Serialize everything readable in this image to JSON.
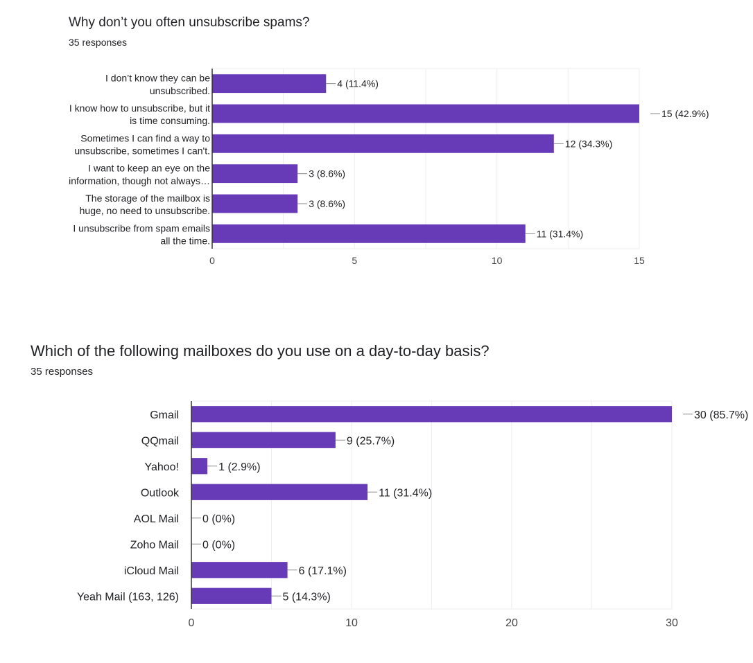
{
  "chart_data": [
    {
      "type": "bar",
      "orientation": "horizontal",
      "title": "Why don’t you often unsubscribe spams?",
      "subtitle": "35 responses",
      "categories": [
        [
          "I don’t know they can be",
          "unsubscribed."
        ],
        [
          "I know how to unsubscribe, but it",
          "is time consuming."
        ],
        [
          "Sometimes I can find a way to",
          "unsubscribe, sometimes I can't."
        ],
        [
          "I want to keep an eye on the",
          "information, though not always…"
        ],
        [
          "The storage of the mailbox is",
          "huge, no need to unsubscribe."
        ],
        [
          "I unsubscribe from spam emails",
          "all the time."
        ]
      ],
      "values": [
        4,
        15,
        12,
        3,
        3,
        11
      ],
      "value_labels": [
        "4 (11.4%)",
        "15 (42.9%)",
        "12 (34.3%)",
        "3 (8.6%)",
        "3 (8.6%)",
        "11 (31.4%)"
      ],
      "xlim": [
        0,
        15
      ],
      "xticks": [
        0,
        5,
        10,
        15
      ],
      "grid": true,
      "color": "#673ab7"
    },
    {
      "type": "bar",
      "orientation": "horizontal",
      "title": "Which of the following mailboxes do you use on a day-to-day basis?",
      "subtitle": "35 responses",
      "categories": [
        "Gmail",
        "QQmail",
        "Yahoo!",
        "Outlook",
        "AOL Mail",
        "Zoho Mail",
        "iCloud Mail",
        "Yeah Mail (163, 126)"
      ],
      "values": [
        30,
        9,
        1,
        11,
        0,
        0,
        6,
        5
      ],
      "value_labels": [
        "30 (85.7%)",
        "9 (25.7%)",
        "1 (2.9%)",
        "11 (31.4%)",
        "0 (0%)",
        "0 (0%)",
        "6 (17.1%)",
        "5 (14.3%)"
      ],
      "xlim": [
        0,
        30
      ],
      "xticks": [
        0,
        10,
        20,
        30
      ],
      "grid": true,
      "color": "#673ab7"
    }
  ]
}
